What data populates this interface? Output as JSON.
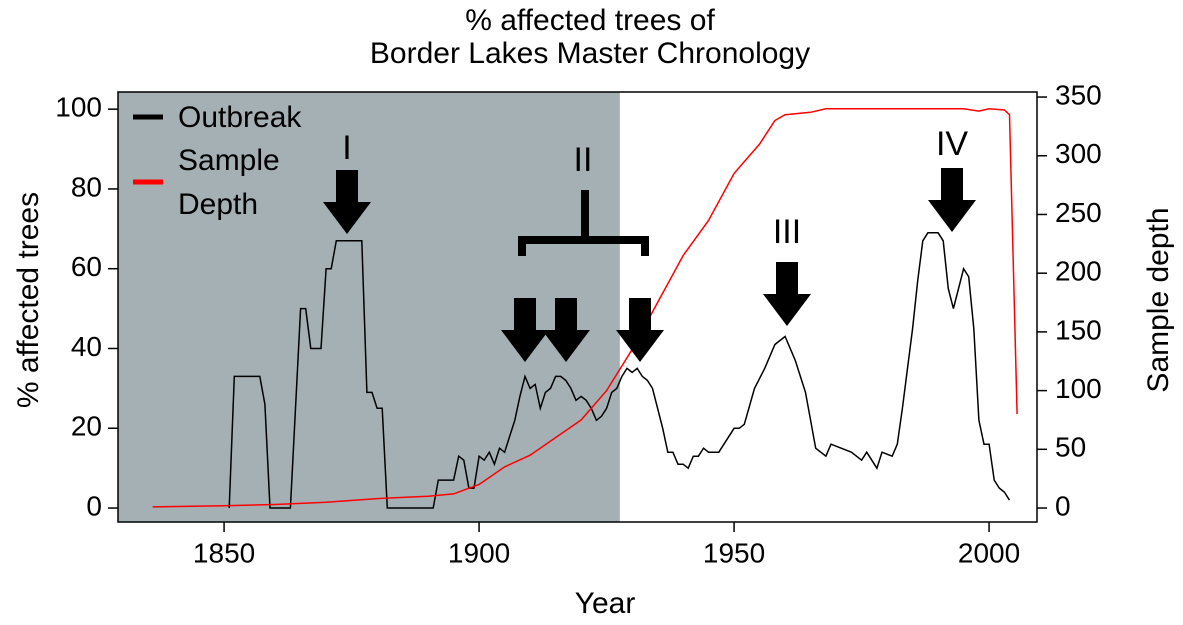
{
  "chart_data": {
    "type": "line",
    "title": [
      "% affected trees of",
      "Border Lakes Master Chronology"
    ],
    "x_label": "Year",
    "y_label": "% affected trees",
    "y2_label": "Sample depth",
    "xlim": [
      1829.2,
      2009.4
    ],
    "xticks": [
      1850,
      1900,
      1950,
      2000
    ],
    "ylim": [
      -3.5,
      104.3
    ],
    "yticks": [
      0,
      20,
      40,
      60,
      80,
      100
    ],
    "y2lim": [
      -11.9,
      354.3
    ],
    "y2ticks": [
      0,
      50,
      100,
      150,
      200,
      250,
      300,
      350
    ],
    "shaded_until": 1927.6,
    "shade_color": "#a4b0b3",
    "annotations": [
      "I",
      "II",
      "III",
      "IV"
    ],
    "series": [
      {
        "name": "Outbreak",
        "color": "#000000",
        "x": [
          1851,
          1852,
          1857,
          1858,
          1859,
          1863,
          1865,
          1866,
          1867,
          1869,
          1870,
          1871,
          1872,
          1877,
          1878,
          1879,
          1880,
          1881,
          1882,
          1891,
          1892,
          1895,
          1896,
          1897,
          1898,
          1899,
          1900,
          1901,
          1902,
          1903,
          1904,
          1905,
          1906,
          1907,
          1908,
          1909,
          1910,
          1911,
          1912,
          1913,
          1914,
          1915,
          1916,
          1917,
          1918,
          1919,
          1920,
          1921,
          1922,
          1923,
          1924,
          1925,
          1926,
          1927,
          1928,
          1929,
          1930,
          1931,
          1932,
          1933,
          1934,
          1935,
          1936,
          1937,
          1938,
          1939,
          1940,
          1941,
          1942,
          1943,
          1944,
          1945,
          1946,
          1947,
          1950,
          1951,
          1952,
          1954,
          1956,
          1958,
          1960,
          1962,
          1964,
          1966,
          1968,
          1969,
          1971,
          1973,
          1975,
          1976,
          1978,
          1979,
          1981,
          1982,
          1983,
          1984,
          1985,
          1986,
          1987,
          1988,
          1990,
          1991,
          1992,
          1993,
          1994,
          1995,
          1996,
          1997,
          1998,
          1999,
          2000,
          2001,
          2002,
          2003,
          2004
        ],
        "values": [
          0,
          33,
          33,
          26,
          0,
          0,
          50,
          50,
          40,
          40,
          60,
          60,
          67,
          67,
          29,
          29,
          25,
          25,
          0,
          0,
          7,
          7,
          13,
          12,
          5,
          5,
          13,
          12,
          14,
          11,
          15,
          14,
          18,
          22,
          28,
          33,
          30,
          31,
          25,
          29,
          30,
          33,
          33,
          32,
          30,
          27,
          28,
          27,
          25,
          22,
          23,
          25,
          29,
          30,
          33,
          35,
          34,
          35,
          33,
          32,
          30,
          25,
          20,
          14,
          14,
          11,
          11,
          10,
          13,
          13,
          15,
          14,
          14,
          14,
          20,
          20,
          21,
          30,
          35,
          41,
          43,
          37,
          29,
          15,
          13,
          16,
          15,
          14,
          12,
          14,
          10,
          14,
          13,
          16,
          25,
          35,
          45,
          57,
          67,
          69,
          69,
          67,
          55,
          50,
          55,
          60,
          58,
          45,
          22,
          16,
          16,
          7,
          5,
          4,
          2
        ]
      },
      {
        "name": "Sample Depth",
        "color": "#ff0000",
        "axis": "y2",
        "x": [
          1836,
          1850,
          1860,
          1870,
          1880,
          1890,
          1895,
          1900,
          1905,
          1910,
          1915,
          1920,
          1925,
          1930,
          1935,
          1940,
          1945,
          1950,
          1955,
          1958,
          1960,
          1965,
          1968,
          1975,
          1985,
          1995,
          1998,
          2000,
          2003,
          2004,
          2005.5
        ],
        "values": [
          1,
          2,
          3,
          5,
          8,
          10,
          12,
          20,
          35,
          45,
          60,
          75,
          100,
          135,
          175,
          215,
          245,
          285,
          310,
          330,
          335,
          337,
          340,
          340,
          340,
          340,
          338,
          340,
          339,
          335,
          80
        ]
      }
    ]
  }
}
